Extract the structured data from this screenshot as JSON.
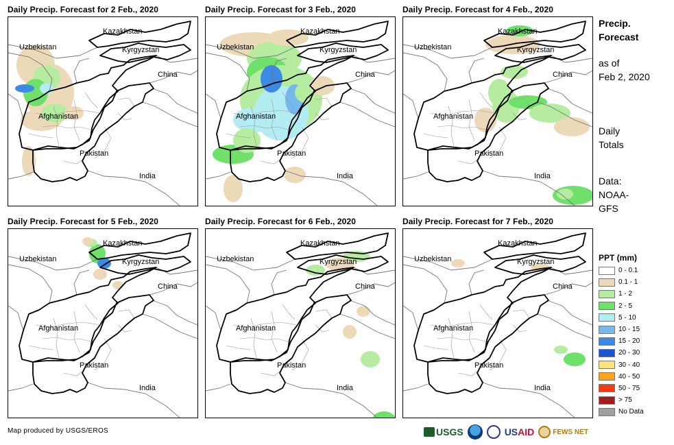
{
  "panels": [
    {
      "title": "Daily Precip. Forecast for 2 Feb., 2020"
    },
    {
      "title": "Daily Precip. Forecast for 3 Feb., 2020"
    },
    {
      "title": "Daily Precip. Forecast for 4 Feb., 2020"
    },
    {
      "title": "Daily Precip. Forecast for 5 Feb., 2020"
    },
    {
      "title": "Daily Precip. Forecast for 6 Feb., 2020"
    },
    {
      "title": "Daily Precip. Forecast for 7 Feb., 2020"
    }
  ],
  "place_labels": {
    "kazakhstan": "Kazakhstan",
    "uzbekistan": "Uzbekistan",
    "kyrgyzstan": "Kyrgyzstan",
    "china": "China",
    "afghanistan": "Afghanistan",
    "pakistan": "Pakistan",
    "india": "India"
  },
  "side": {
    "heading_line1": "Precip.",
    "heading_line2": "Forecast",
    "asof_line1": "as of",
    "asof_line2": "Feb 2, 2020",
    "daily_line1": "Daily",
    "daily_line2": "Totals",
    "data_line1": "Data:",
    "data_line2": "NOAA-",
    "data_line3": "GFS"
  },
  "legend": {
    "title": "PPT (mm)",
    "items": [
      {
        "label": "0 - 0.1",
        "color": "#ffffff"
      },
      {
        "label": "0.1 - 1",
        "color": "#ecd9b8"
      },
      {
        "label": "1 - 2",
        "color": "#b5eca0"
      },
      {
        "label": "2 - 5",
        "color": "#6fe06a"
      },
      {
        "label": "5 - 10",
        "color": "#b4ecf4"
      },
      {
        "label": "10 - 15",
        "color": "#74b8ec"
      },
      {
        "label": "15 - 20",
        "color": "#3a8ae6"
      },
      {
        "label": "20 - 30",
        "color": "#1a55d4"
      },
      {
        "label": "30 - 40",
        "color": "#fee07c"
      },
      {
        "label": "40 - 50",
        "color": "#fba21e"
      },
      {
        "label": "50 - 75",
        "color": "#f23b12"
      },
      {
        "label": "> 75",
        "color": "#a51d1f"
      },
      {
        "label": "No Data",
        "color": "#a0a0a0"
      }
    ]
  },
  "credit": "Map produced by USGS/EROS",
  "logos": {
    "usgs": "USGS",
    "usaid_prefix": "US",
    "usaid_suffix": "AID",
    "fews": "FEWS NET"
  }
}
